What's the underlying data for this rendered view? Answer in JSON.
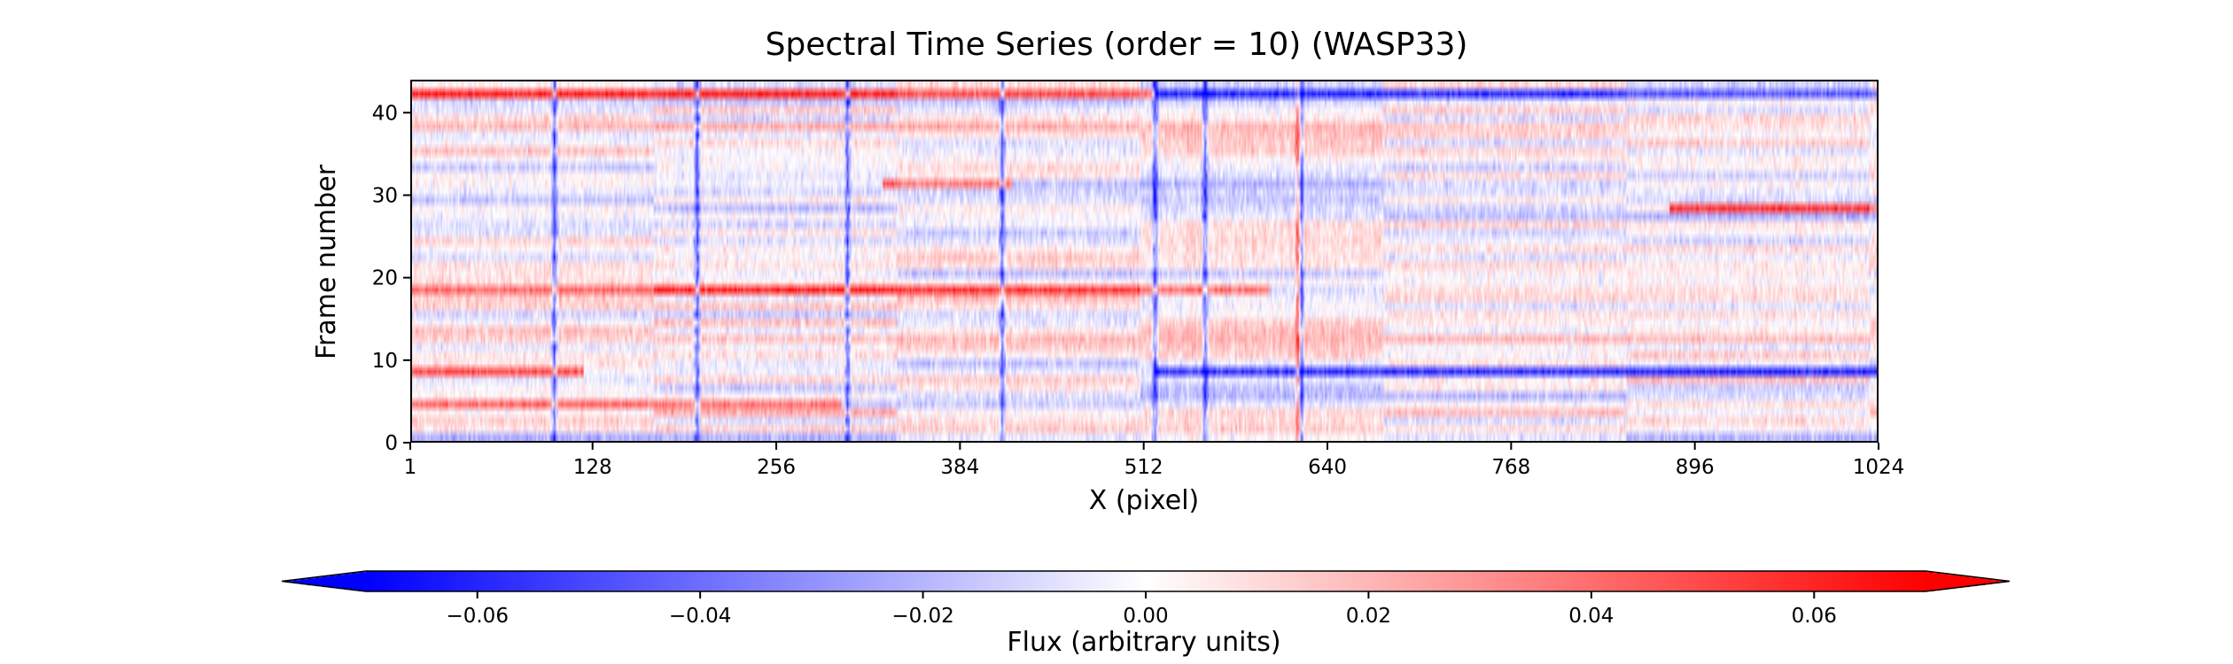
{
  "chart_data": [
    {
      "type": "heatmap",
      "title": "Spectral Time Series (order = 10) (WASP33)",
      "xlabel": "X (pixel)",
      "ylabel": "Frame number",
      "xlim": [
        1,
        1024
      ],
      "ylim": [
        0,
        44
      ],
      "x_ticks": [
        "1",
        "128",
        "256",
        "384",
        "512",
        "640",
        "768",
        "896",
        "1024"
      ],
      "y_ticks": [
        "0",
        "10",
        "20",
        "30",
        "40"
      ],
      "colormap": "bwr",
      "frames": 44,
      "pixels": 1024,
      "notable_columns": [
        {
          "x": 100,
          "sign": "negative"
        },
        {
          "x": 200,
          "sign": "negative"
        },
        {
          "x": 305,
          "sign": "negative"
        },
        {
          "x": 413,
          "sign": "negative"
        },
        {
          "x": 520,
          "sign": "negative"
        },
        {
          "x": 555,
          "sign": "negative"
        },
        {
          "x": 620,
          "sign": "positive"
        },
        {
          "x": 622,
          "sign": "negative"
        }
      ],
      "notable_rows": [
        {
          "frame": 42,
          "sign": "positive",
          "x_range": [
            1,
            520
          ]
        },
        {
          "frame": 42,
          "sign": "negative",
          "x_range": [
            520,
            1024
          ]
        },
        {
          "frame": 18,
          "sign": "positive",
          "x_range": [
            1,
            600
          ]
        },
        {
          "frame": 8,
          "sign": "positive",
          "x_range": [
            1,
            120
          ]
        },
        {
          "frame": 8,
          "sign": "negative",
          "x_range": [
            520,
            1024
          ]
        },
        {
          "frame": 4,
          "sign": "positive",
          "x_range": [
            1,
            300
          ]
        },
        {
          "frame": 31,
          "sign": "positive",
          "x_range": [
            330,
            420
          ]
        },
        {
          "frame": 28,
          "sign": "positive",
          "x_range": [
            880,
            1024
          ]
        }
      ]
    },
    {
      "type": "colorbar",
      "xlabel": "Flux (arbitrary units)",
      "range": [
        -0.07,
        0.07
      ],
      "ticks": [
        "−0.06",
        "−0.04",
        "−0.02",
        "0.00",
        "0.02",
        "0.04",
        "0.06"
      ],
      "extend": "both",
      "colors": {
        "negative": "#0000ff",
        "zero": "#ffffff",
        "positive": "#ff0000"
      }
    }
  ]
}
